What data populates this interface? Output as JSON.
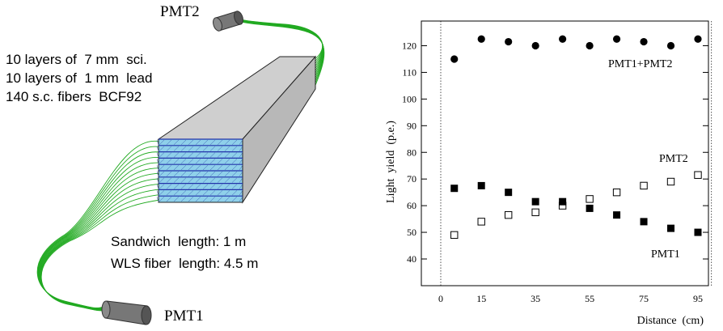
{
  "diagram": {
    "pmt_top_label": "PMT2",
    "pmt_bottom_label": "PMT1",
    "spec_lines": [
      "10 layers of  7 mm  sci.",
      "10 layers of  1 mm  lead",
      "140 s.c. fibers  BCF92"
    ],
    "dim_lines": [
      "Sandwich  length: 1 m",
      "WLS fiber  length: 4.5 m"
    ],
    "colors": {
      "fiber": "#22aa22",
      "block_side": "#c0c0c0",
      "block_top": "#cfcfcf",
      "face_layer": "#7fc8e8",
      "face_lines": "#2233aa",
      "pmt": "#7a7a7a"
    }
  },
  "chart_data": {
    "type": "scatter",
    "ylabel": "Light  yield  (p.e.)",
    "xlabel": "Distance  (cm)",
    "x_ticks": [
      0,
      15,
      35,
      55,
      75,
      95
    ],
    "y_ticks": [
      40,
      50,
      60,
      70,
      80,
      90,
      100,
      110,
      120
    ],
    "xlim": [
      -5,
      100
    ],
    "ylim": [
      30,
      125
    ],
    "series": [
      {
        "name": "PMT1+PMT2",
        "marker": "filled-circle",
        "x": [
          5,
          15,
          25,
          35,
          45,
          55,
          65,
          75,
          85,
          95
        ],
        "y": [
          115,
          122.5,
          121.5,
          120,
          122.5,
          120,
          122.5,
          121.5,
          120,
          122.5
        ]
      },
      {
        "name": "PMT2",
        "marker": "open-square",
        "x": [
          5,
          15,
          25,
          35,
          45,
          55,
          65,
          75,
          85,
          95
        ],
        "y": [
          49,
          54,
          56.5,
          57.5,
          60,
          62.5,
          65,
          67.5,
          69,
          71.5
        ]
      },
      {
        "name": "PMT1",
        "marker": "filled-square",
        "x": [
          5,
          15,
          25,
          35,
          45,
          55,
          65,
          75,
          85,
          95
        ],
        "y": [
          66.5,
          67.5,
          65,
          61.5,
          61.5,
          59,
          56.5,
          54,
          51.5,
          50
        ]
      }
    ]
  }
}
